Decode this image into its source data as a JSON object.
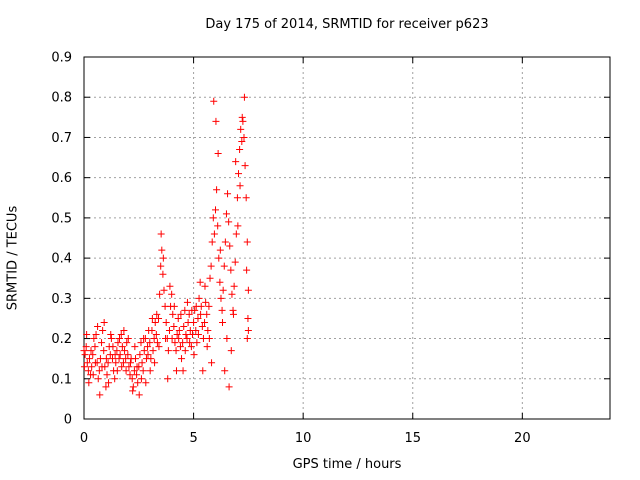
{
  "chart_data": {
    "type": "scatter",
    "title": "Day 175 of 2014, SRMTID for receiver p623",
    "xlabel": "GPS time / hours",
    "ylabel": "SRMTID / TECUs",
    "xlim": [
      0,
      24
    ],
    "ylim": [
      0,
      0.9
    ],
    "xticks": [
      0,
      5,
      10,
      15,
      20
    ],
    "xtick_labels": [
      "0",
      "5",
      "10",
      "15",
      "20"
    ],
    "yticks": [
      0,
      0.1,
      0.2,
      0.3,
      0.4,
      0.5,
      0.6,
      0.7,
      0.8,
      0.9
    ],
    "ytick_labels": [
      "0",
      "0.1",
      "0.2",
      "0.3",
      "0.4",
      "0.5",
      "0.6",
      "0.7",
      "0.8",
      "0.9"
    ],
    "grid": true,
    "marker": "+",
    "color": "#ff0000",
    "series": [
      {
        "name": "SRMTID",
        "points": [
          [
            0.0,
            0.17
          ],
          [
            0.05,
            0.16
          ],
          [
            0.1,
            0.18
          ],
          [
            0.15,
            0.14
          ],
          [
            0.2,
            0.12
          ],
          [
            0.25,
            0.15
          ],
          [
            0.3,
            0.11
          ],
          [
            0.35,
            0.13
          ],
          [
            0.4,
            0.16
          ],
          [
            0.45,
            0.2
          ],
          [
            0.5,
            0.18
          ],
          [
            0.55,
            0.21
          ],
          [
            0.6,
            0.14
          ],
          [
            0.65,
            0.1
          ],
          [
            0.7,
            0.12
          ],
          [
            0.75,
            0.15
          ],
          [
            0.8,
            0.19
          ],
          [
            0.85,
            0.22
          ],
          [
            0.9,
            0.17
          ],
          [
            0.95,
            0.13
          ],
          [
            1.0,
            0.08
          ],
          [
            1.05,
            0.11
          ],
          [
            1.1,
            0.14
          ],
          [
            1.15,
            0.18
          ],
          [
            1.2,
            0.16
          ],
          [
            1.25,
            0.2
          ],
          [
            1.3,
            0.15
          ],
          [
            1.35,
            0.12
          ],
          [
            1.4,
            0.1
          ],
          [
            1.45,
            0.14
          ],
          [
            1.5,
            0.17
          ],
          [
            1.55,
            0.19
          ],
          [
            1.6,
            0.15
          ],
          [
            1.65,
            0.16
          ],
          [
            1.7,
            0.21
          ],
          [
            1.75,
            0.18
          ],
          [
            1.8,
            0.14
          ],
          [
            1.85,
            0.17
          ],
          [
            1.9,
            0.15
          ],
          [
            1.95,
            0.19
          ],
          [
            2.0,
            0.16
          ],
          [
            2.05,
            0.13
          ],
          [
            2.1,
            0.11
          ],
          [
            2.15,
            0.15
          ],
          [
            2.2,
            0.1
          ],
          [
            2.25,
            0.08
          ],
          [
            2.3,
            0.12
          ],
          [
            2.35,
            0.15
          ],
          [
            2.4,
            0.11
          ],
          [
            2.45,
            0.09
          ],
          [
            2.5,
            0.13
          ],
          [
            2.55,
            0.16
          ],
          [
            2.6,
            0.19
          ],
          [
            2.65,
            0.14
          ],
          [
            2.7,
            0.12
          ],
          [
            2.75,
            0.17
          ],
          [
            2.8,
            0.2
          ],
          [
            2.85,
            0.15
          ],
          [
            2.9,
            0.18
          ],
          [
            2.95,
            0.22
          ],
          [
            3.0,
            0.19
          ],
          [
            3.05,
            0.15
          ],
          [
            3.1,
            0.22
          ],
          [
            3.15,
            0.17
          ],
          [
            3.2,
            0.2
          ],
          [
            3.25,
            0.24
          ],
          [
            3.3,
            0.21
          ],
          [
            3.35,
            0.19
          ],
          [
            3.4,
            0.25
          ],
          [
            3.45,
            0.31
          ],
          [
            3.5,
            0.38
          ],
          [
            3.55,
            0.42
          ],
          [
            3.6,
            0.36
          ],
          [
            3.65,
            0.32
          ],
          [
            3.7,
            0.28
          ],
          [
            3.75,
            0.24
          ],
          [
            3.8,
            0.2
          ],
          [
            3.85,
            0.17
          ],
          [
            3.9,
            0.22
          ],
          [
            3.95,
            0.28
          ],
          [
            4.0,
            0.31
          ],
          [
            4.05,
            0.26
          ],
          [
            4.1,
            0.23
          ],
          [
            4.15,
            0.19
          ],
          [
            4.2,
            0.17
          ],
          [
            4.25,
            0.21
          ],
          [
            4.3,
            0.25
          ],
          [
            4.35,
            0.22
          ],
          [
            4.4,
            0.18
          ],
          [
            4.45,
            0.15
          ],
          [
            4.5,
            0.19
          ],
          [
            4.55,
            0.23
          ],
          [
            4.6,
            0.27
          ],
          [
            4.65,
            0.21
          ],
          [
            4.7,
            0.2
          ],
          [
            4.75,
            0.24
          ],
          [
            4.8,
            0.26
          ],
          [
            4.85,
            0.22
          ],
          [
            4.9,
            0.18
          ],
          [
            4.95,
            0.21
          ],
          [
            5.0,
            0.24
          ],
          [
            5.05,
            0.27
          ],
          [
            5.1,
            0.22
          ],
          [
            5.15,
            0.19
          ],
          [
            5.2,
            0.25
          ],
          [
            5.25,
            0.3
          ],
          [
            5.3,
            0.34
          ],
          [
            5.35,
            0.28
          ],
          [
            5.4,
            0.23
          ],
          [
            5.45,
            0.2
          ],
          [
            5.5,
            0.24
          ],
          [
            5.55,
            0.29
          ],
          [
            5.6,
            0.26
          ],
          [
            5.65,
            0.22
          ],
          [
            5.7,
            0.28
          ],
          [
            5.75,
            0.35
          ],
          [
            5.8,
            0.38
          ],
          [
            5.85,
            0.44
          ],
          [
            5.9,
            0.5
          ],
          [
            5.95,
            0.46
          ],
          [
            6.0,
            0.52
          ],
          [
            6.05,
            0.57
          ],
          [
            6.1,
            0.48
          ],
          [
            6.15,
            0.4
          ],
          [
            6.2,
            0.34
          ],
          [
            6.25,
            0.3
          ],
          [
            6.3,
            0.27
          ],
          [
            6.35,
            0.32
          ],
          [
            6.4,
            0.38
          ],
          [
            6.45,
            0.44
          ],
          [
            6.5,
            0.51
          ],
          [
            6.55,
            0.56
          ],
          [
            6.6,
            0.49
          ],
          [
            6.65,
            0.43
          ],
          [
            6.7,
            0.37
          ],
          [
            6.75,
            0.31
          ],
          [
            6.8,
            0.27
          ],
          [
            6.85,
            0.33
          ],
          [
            6.9,
            0.39
          ],
          [
            6.95,
            0.46
          ],
          [
            7.0,
            0.55
          ],
          [
            7.05,
            0.61
          ],
          [
            7.1,
            0.67
          ],
          [
            7.15,
            0.72
          ],
          [
            7.2,
            0.69
          ],
          [
            7.25,
            0.74
          ],
          [
            7.3,
            0.7
          ],
          [
            7.35,
            0.63
          ],
          [
            7.4,
            0.55
          ],
          [
            7.45,
            0.44
          ],
          [
            7.5,
            0.32
          ],
          [
            7.5,
            0.22
          ],
          [
            0.02,
            0.13
          ],
          [
            0.12,
            0.21
          ],
          [
            0.22,
            0.09
          ],
          [
            0.32,
            0.17
          ],
          [
            0.42,
            0.11
          ],
          [
            0.52,
            0.14
          ],
          [
            0.62,
            0.23
          ],
          [
            0.72,
            0.06
          ],
          [
            0.82,
            0.13
          ],
          [
            0.92,
            0.24
          ],
          [
            1.02,
            0.15
          ],
          [
            1.12,
            0.09
          ],
          [
            1.22,
            0.21
          ],
          [
            1.32,
            0.18
          ],
          [
            1.42,
            0.16
          ],
          [
            1.52,
            0.12
          ],
          [
            1.62,
            0.2
          ],
          [
            1.72,
            0.13
          ],
          [
            1.82,
            0.22
          ],
          [
            1.92,
            0.12
          ],
          [
            2.02,
            0.2
          ],
          [
            2.12,
            0.14
          ],
          [
            2.22,
            0.07
          ],
          [
            2.32,
            0.18
          ],
          [
            2.42,
            0.13
          ],
          [
            2.52,
            0.06
          ],
          [
            2.62,
            0.1
          ],
          [
            2.72,
            0.2
          ],
          [
            2.82,
            0.09
          ],
          [
            2.92,
            0.16
          ],
          [
            3.02,
            0.12
          ],
          [
            3.12,
            0.25
          ],
          [
            3.22,
            0.14
          ],
          [
            3.32,
            0.26
          ],
          [
            3.42,
            0.18
          ],
          [
            3.52,
            0.46
          ],
          [
            3.62,
            0.4
          ],
          [
            3.72,
            0.2
          ],
          [
            3.82,
            0.1
          ],
          [
            3.92,
            0.33
          ],
          [
            4.02,
            0.2
          ],
          [
            4.12,
            0.28
          ],
          [
            4.22,
            0.12
          ],
          [
            4.32,
            0.2
          ],
          [
            4.42,
            0.26
          ],
          [
            4.52,
            0.12
          ],
          [
            4.62,
            0.17
          ],
          [
            4.72,
            0.29
          ],
          [
            4.82,
            0.19
          ],
          [
            4.92,
            0.27
          ],
          [
            5.02,
            0.16
          ],
          [
            5.12,
            0.28
          ],
          [
            5.22,
            0.21
          ],
          [
            5.32,
            0.26
          ],
          [
            5.42,
            0.12
          ],
          [
            5.52,
            0.33
          ],
          [
            5.62,
            0.18
          ],
          [
            5.72,
            0.2
          ],
          [
            5.82,
            0.14
          ],
          [
            5.92,
            0.79
          ],
          [
            6.02,
            0.74
          ],
          [
            6.12,
            0.66
          ],
          [
            6.22,
            0.42
          ],
          [
            6.32,
            0.24
          ],
          [
            6.42,
            0.12
          ],
          [
            6.52,
            0.2
          ],
          [
            6.62,
            0.08
          ],
          [
            6.72,
            0.17
          ],
          [
            6.82,
            0.26
          ],
          [
            6.92,
            0.64
          ],
          [
            7.02,
            0.48
          ],
          [
            7.12,
            0.58
          ],
          [
            7.22,
            0.75
          ],
          [
            7.32,
            0.8
          ],
          [
            7.42,
            0.37
          ],
          [
            7.45,
            0.2
          ],
          [
            7.48,
            0.25
          ]
        ]
      }
    ]
  }
}
